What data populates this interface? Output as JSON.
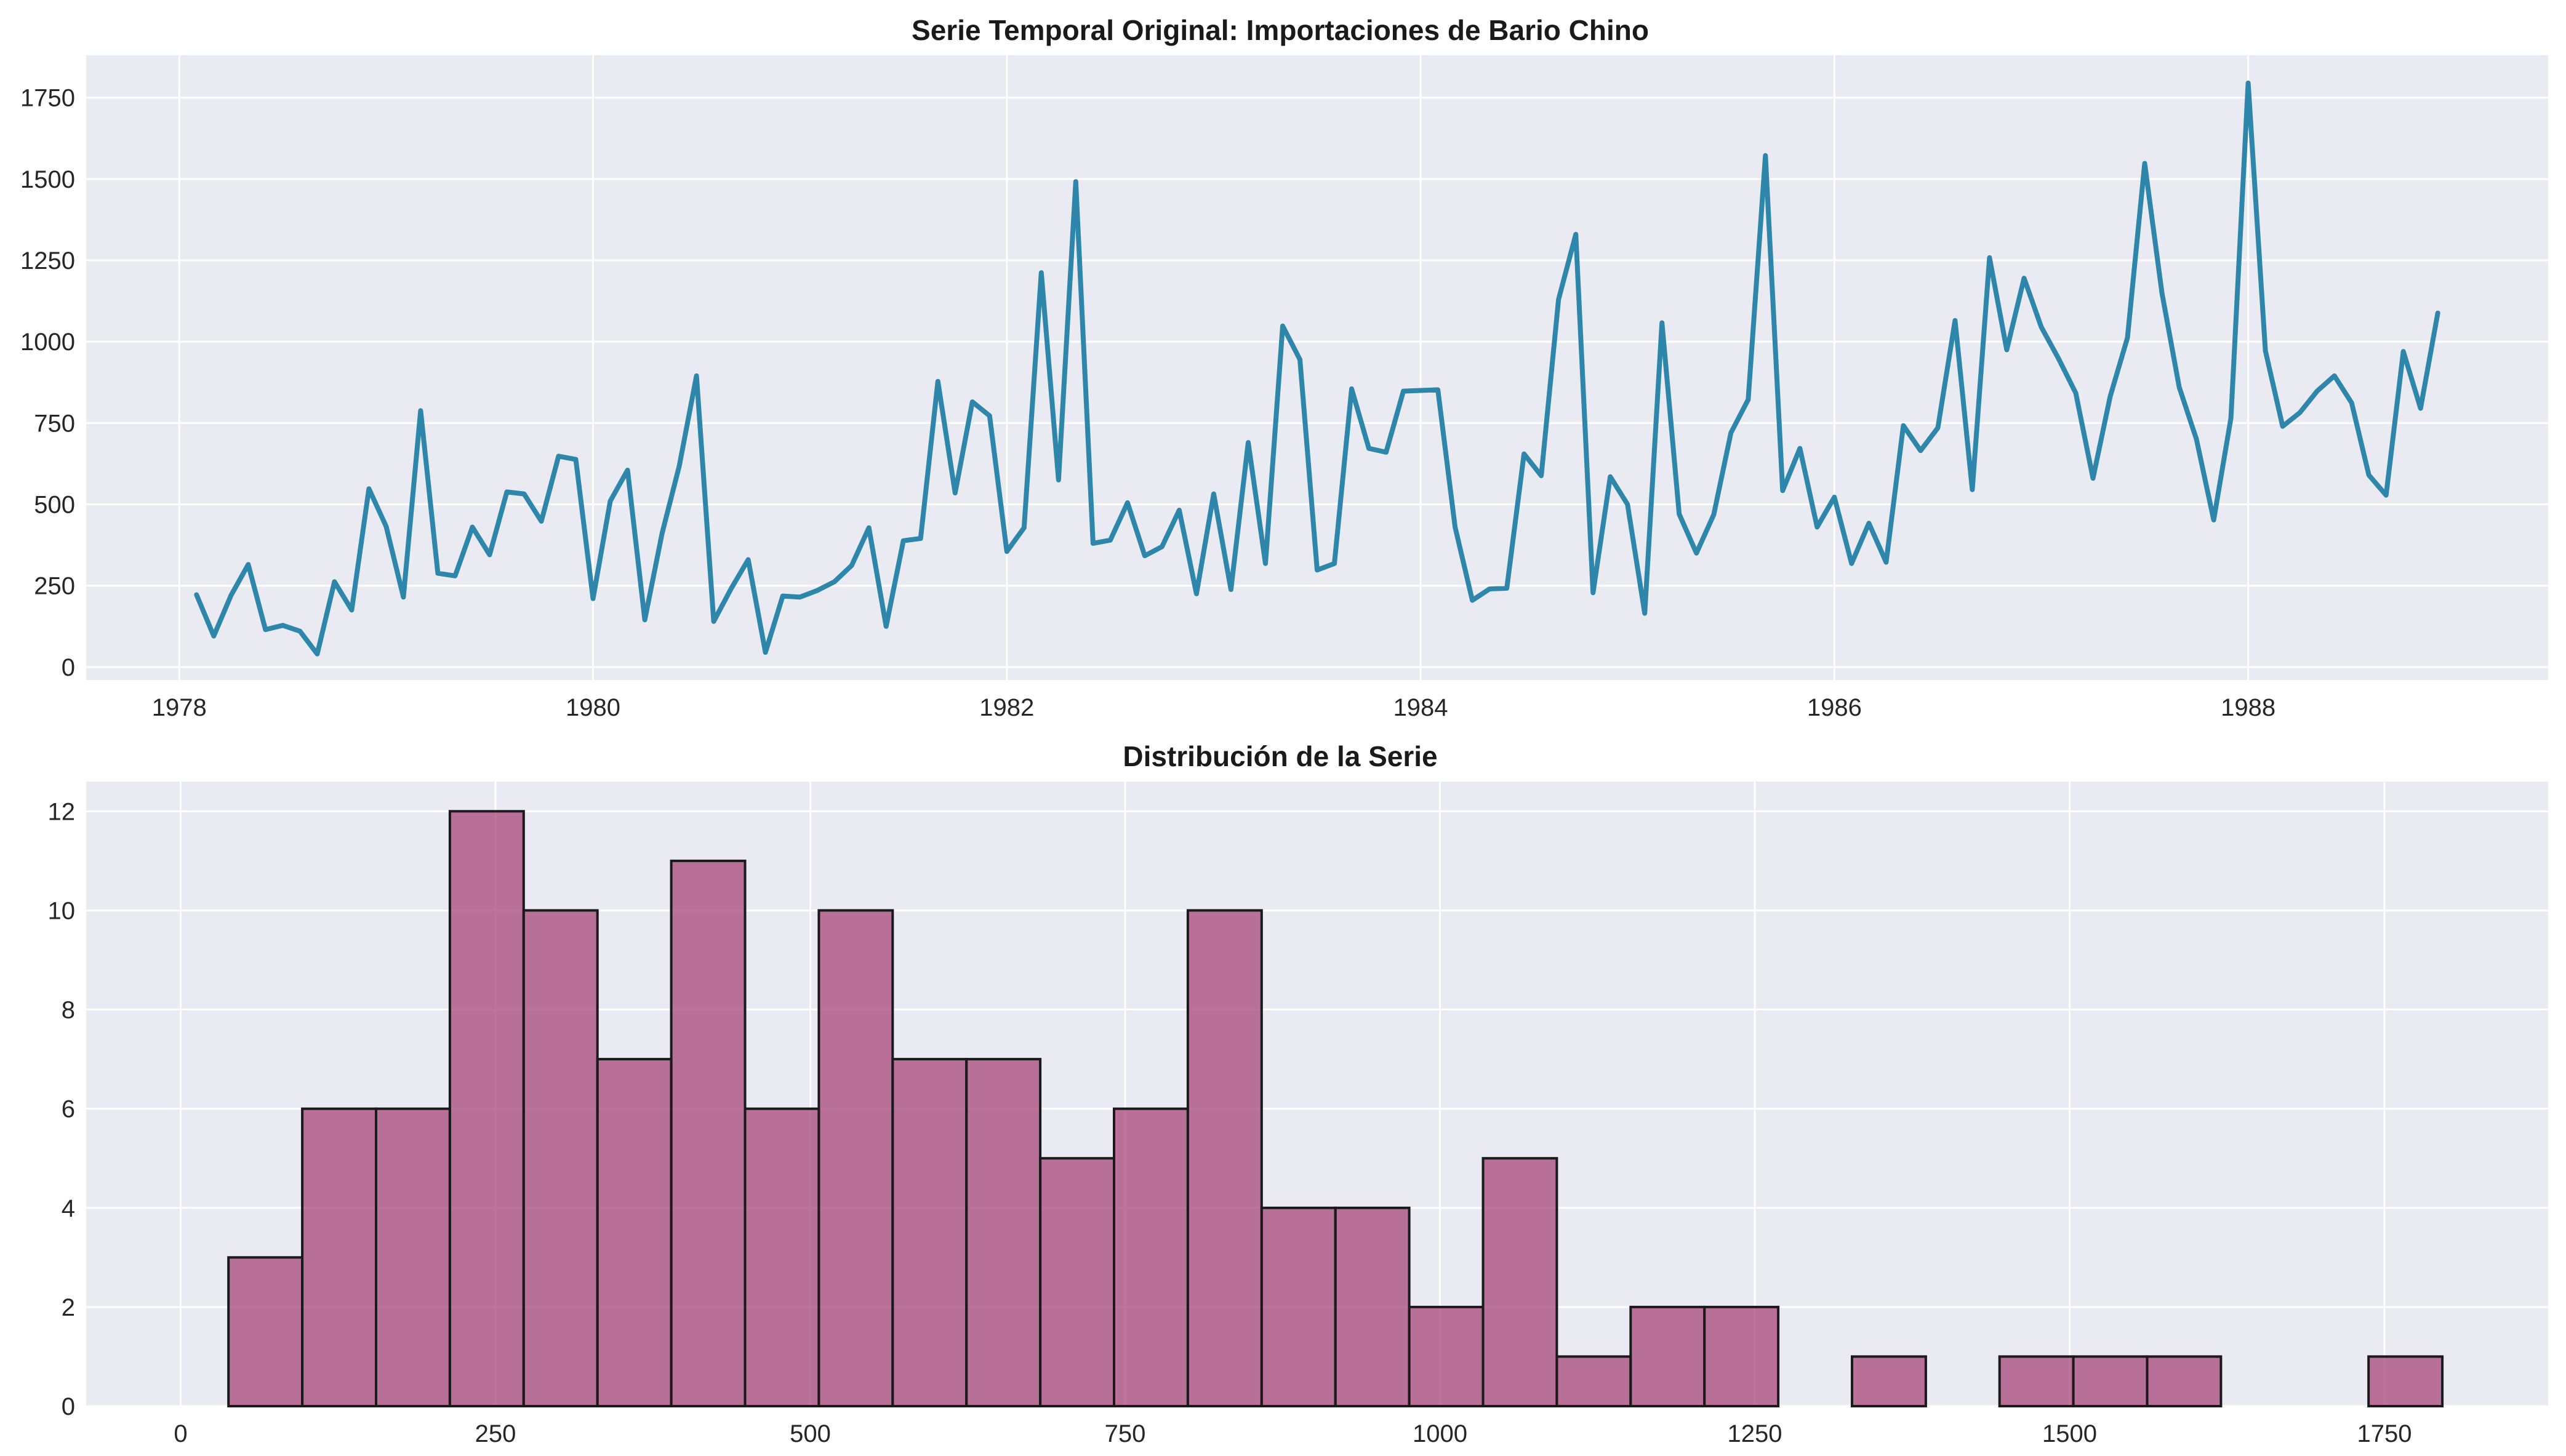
{
  "chart_data": [
    {
      "type": "line",
      "title": "Serie Temporal Original: Importaciones de Bario Chino",
      "xlabel": "",
      "ylabel": "",
      "x_start": "1978-02",
      "x_step": "month",
      "xlim": [
        1977.55,
        1989.45
      ],
      "ylim": [
        -40,
        1880
      ],
      "xticks": [
        1978,
        1980,
        1982,
        1984,
        1986,
        1988
      ],
      "yticks": [
        0,
        250,
        500,
        750,
        1000,
        1250,
        1500,
        1750
      ],
      "grid": true,
      "colors": {
        "line": "#2e86ab",
        "background": "#eaeaf2"
      },
      "series": [
        {
          "values": [
            222,
            95,
            220,
            315,
            115,
            128,
            110,
            40,
            262,
            175,
            548,
            432,
            215,
            788,
            288,
            280,
            430,
            345,
            538,
            532,
            448,
            648,
            638,
            210,
            510,
            605,
            145,
            410,
            618,
            895,
            140,
            240,
            330,
            45,
            218,
            215,
            235,
            262,
            312,
            428,
            125,
            388,
            395,
            878,
            535,
            815,
            772,
            355,
            428,
            1212,
            575,
            1492,
            380,
            390,
            505,
            342,
            370,
            482,
            225,
            532,
            238,
            690,
            318,
            1048,
            945,
            298,
            318,
            855,
            672,
            660,
            848,
            850,
            852,
            430,
            205,
            240,
            242,
            655,
            588,
            1130,
            1330,
            228,
            585,
            500,
            165,
            1058,
            470,
            350,
            468,
            720,
            822,
            1572,
            542,
            672,
            430,
            522,
            318,
            442,
            322,
            742,
            665,
            735,
            1065,
            545,
            1258,
            975,
            1195,
            1045,
            948,
            842,
            580,
            832,
            1012,
            1548,
            1150,
            860,
            700,
            452,
            765,
            1795,
            972,
            740,
            782,
            848,
            895,
            812,
            590,
            528,
            970,
            795,
            1088
          ]
        }
      ]
    },
    {
      "type": "bar",
      "title": "Distribución de la Serie",
      "xlabel": "",
      "ylabel": "",
      "bin_edges": [
        38,
        96.6,
        155.2,
        213.8,
        272.4,
        331,
        389.6,
        448.2,
        506.8,
        565.4,
        624,
        682.6,
        741.2,
        799.8,
        858.4,
        917,
        975.6,
        1034.2,
        1092.8,
        1151.4,
        1210,
        1268.6,
        1327.2,
        1385.8,
        1444.4,
        1503,
        1561.6,
        1620.2,
        1678.8,
        1737.4,
        1796
      ],
      "values": [
        3,
        6,
        6,
        12,
        10,
        7,
        11,
        6,
        10,
        7,
        7,
        5,
        6,
        10,
        4,
        4,
        2,
        5,
        1,
        2,
        2,
        0,
        1,
        0,
        1,
        1,
        1,
        0,
        0,
        1
      ],
      "xlim": [
        -75,
        1880
      ],
      "ylim": [
        0,
        12.6
      ],
      "xticks": [
        0,
        250,
        500,
        750,
        1000,
        1250,
        1500,
        1750
      ],
      "yticks": [
        0,
        2,
        4,
        6,
        8,
        10,
        12
      ],
      "grid": true,
      "colors": {
        "bar": "#a23b72",
        "edge": "#1a1a1a",
        "background": "#eaeaf2"
      }
    }
  ]
}
